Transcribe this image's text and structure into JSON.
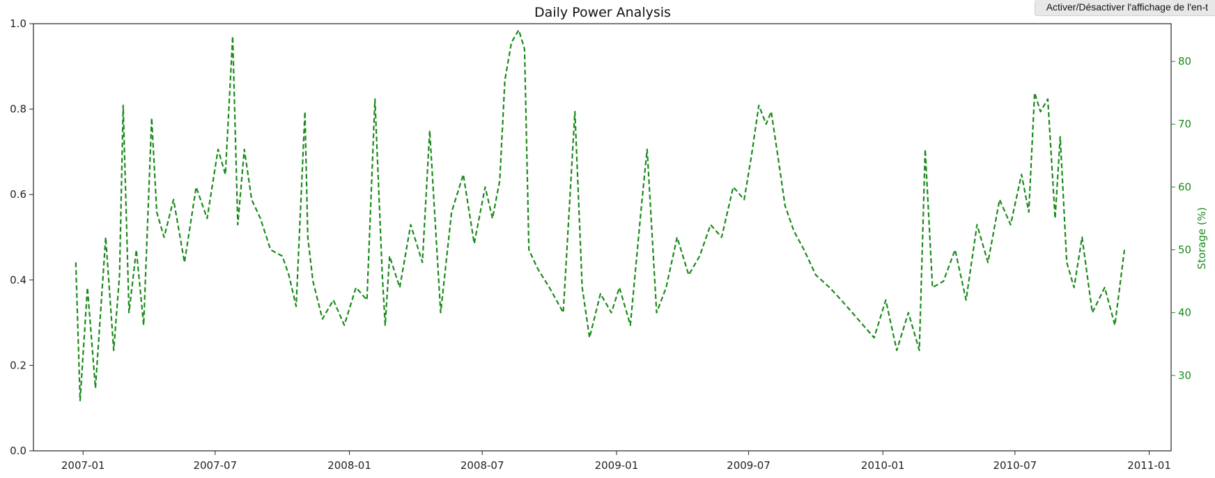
{
  "tooltip": {
    "text": "Activer/Désactiver l'affichage de l'en-t"
  },
  "chart_data": {
    "type": "line",
    "title": "Daily Power Analysis",
    "xlabel": "",
    "ylabel": "",
    "ylabel_right": "Storage (%)",
    "line_style": "dashed",
    "line_color": "#1a8a1a",
    "right_axis_color": "#1a8a1a",
    "grid": false,
    "xlim": [
      "2006-10-25",
      "2011-01-31"
    ],
    "ylim": [
      0.0,
      1.0
    ],
    "ylim_right": [
      18,
      86
    ],
    "x_ticks": [
      "2007-01",
      "2007-07",
      "2008-01",
      "2008-07",
      "2009-01",
      "2009-07",
      "2010-01",
      "2010-07",
      "2011-01"
    ],
    "y_ticks": [
      "0.0",
      "0.2",
      "0.4",
      "0.6",
      "0.8",
      "1.0"
    ],
    "y_ticks_right": [
      "30",
      "40",
      "50",
      "60",
      "70",
      "80"
    ],
    "series": [
      {
        "axis": "right",
        "x": [
          "2006-12-22",
          "2006-12-28",
          "2007-01-07",
          "2007-01-18",
          "2007-02-01",
          "2007-02-12",
          "2007-02-20",
          "2007-02-25",
          "2007-03-05",
          "2007-03-15",
          "2007-03-25",
          "2007-04-05",
          "2007-04-12",
          "2007-04-22",
          "2007-05-05",
          "2007-05-20",
          "2007-06-05",
          "2007-06-20",
          "2007-07-05",
          "2007-07-15",
          "2007-07-25",
          "2007-08-01",
          "2007-08-10",
          "2007-08-20",
          "2007-09-01",
          "2007-09-15",
          "2007-10-01",
          "2007-10-10",
          "2007-10-20",
          "2007-11-01",
          "2007-11-05",
          "2007-11-12",
          "2007-11-25",
          "2007-12-10",
          "2007-12-25",
          "2008-01-10",
          "2008-01-25",
          "2008-02-05",
          "2008-02-15",
          "2008-02-19",
          "2008-02-25",
          "2008-03-10",
          "2008-03-25",
          "2008-04-10",
          "2008-04-20",
          "2008-05-05",
          "2008-05-20",
          "2008-06-05",
          "2008-06-20",
          "2008-07-05",
          "2008-07-15",
          "2008-07-25",
          "2008-08-01",
          "2008-08-10",
          "2008-08-20",
          "2008-08-28",
          "2008-09-03",
          "2008-09-15",
          "2008-10-01",
          "2008-10-20",
          "2008-11-05",
          "2008-11-15",
          "2008-11-25",
          "2008-12-10",
          "2008-12-25",
          "2009-01-05",
          "2009-01-20",
          "2009-02-05",
          "2009-02-12",
          "2009-02-25",
          "2009-03-10",
          "2009-03-25",
          "2009-04-10",
          "2009-04-25",
          "2009-05-10",
          "2009-05-25",
          "2009-06-10",
          "2009-06-25",
          "2009-07-05",
          "2009-07-15",
          "2009-07-25",
          "2009-08-01",
          "2009-08-10",
          "2009-08-20",
          "2009-09-01",
          "2009-09-15",
          "2009-10-01",
          "2009-10-20",
          "2009-11-05",
          "2009-11-20",
          "2009-12-05",
          "2009-12-20",
          "2010-01-05",
          "2010-01-20",
          "2010-02-05",
          "2010-02-20",
          "2010-02-28",
          "2010-03-10",
          "2010-03-25",
          "2010-04-10",
          "2010-04-25",
          "2010-05-10",
          "2010-05-25",
          "2010-06-10",
          "2010-06-25",
          "2010-07-10",
          "2010-07-20",
          "2010-07-28",
          "2010-08-05",
          "2010-08-15",
          "2010-08-25",
          "2010-09-01",
          "2010-09-10",
          "2010-09-20",
          "2010-10-01",
          "2010-10-15",
          "2010-11-01",
          "2010-11-15",
          "2010-11-28"
        ],
        "values": [
          48,
          26,
          44,
          28,
          52,
          34,
          46,
          73,
          40,
          50,
          38,
          71,
          56,
          52,
          58,
          48,
          60,
          55,
          66,
          62,
          84,
          54,
          66,
          58,
          55,
          50,
          49,
          46,
          41,
          72,
          52,
          45,
          39,
          42,
          38,
          44,
          42,
          74,
          46,
          38,
          49,
          44,
          54,
          48,
          69,
          40,
          56,
          62,
          51,
          60,
          55,
          61,
          77,
          83,
          85,
          82,
          50,
          47,
          44,
          40,
          72,
          44,
          36,
          43,
          40,
          44,
          38,
          58,
          66,
          40,
          44,
          52,
          46,
          49,
          54,
          52,
          60,
          58,
          65,
          73,
          70,
          72,
          65,
          57,
          53,
          50,
          46,
          44,
          42,
          40,
          38,
          36,
          42,
          34,
          40,
          34,
          66,
          44,
          45,
          50,
          42,
          54,
          48,
          58,
          54,
          62,
          56,
          75,
          72,
          74,
          55,
          68,
          48,
          44,
          52,
          40,
          44,
          38,
          50
        ]
      }
    ]
  }
}
